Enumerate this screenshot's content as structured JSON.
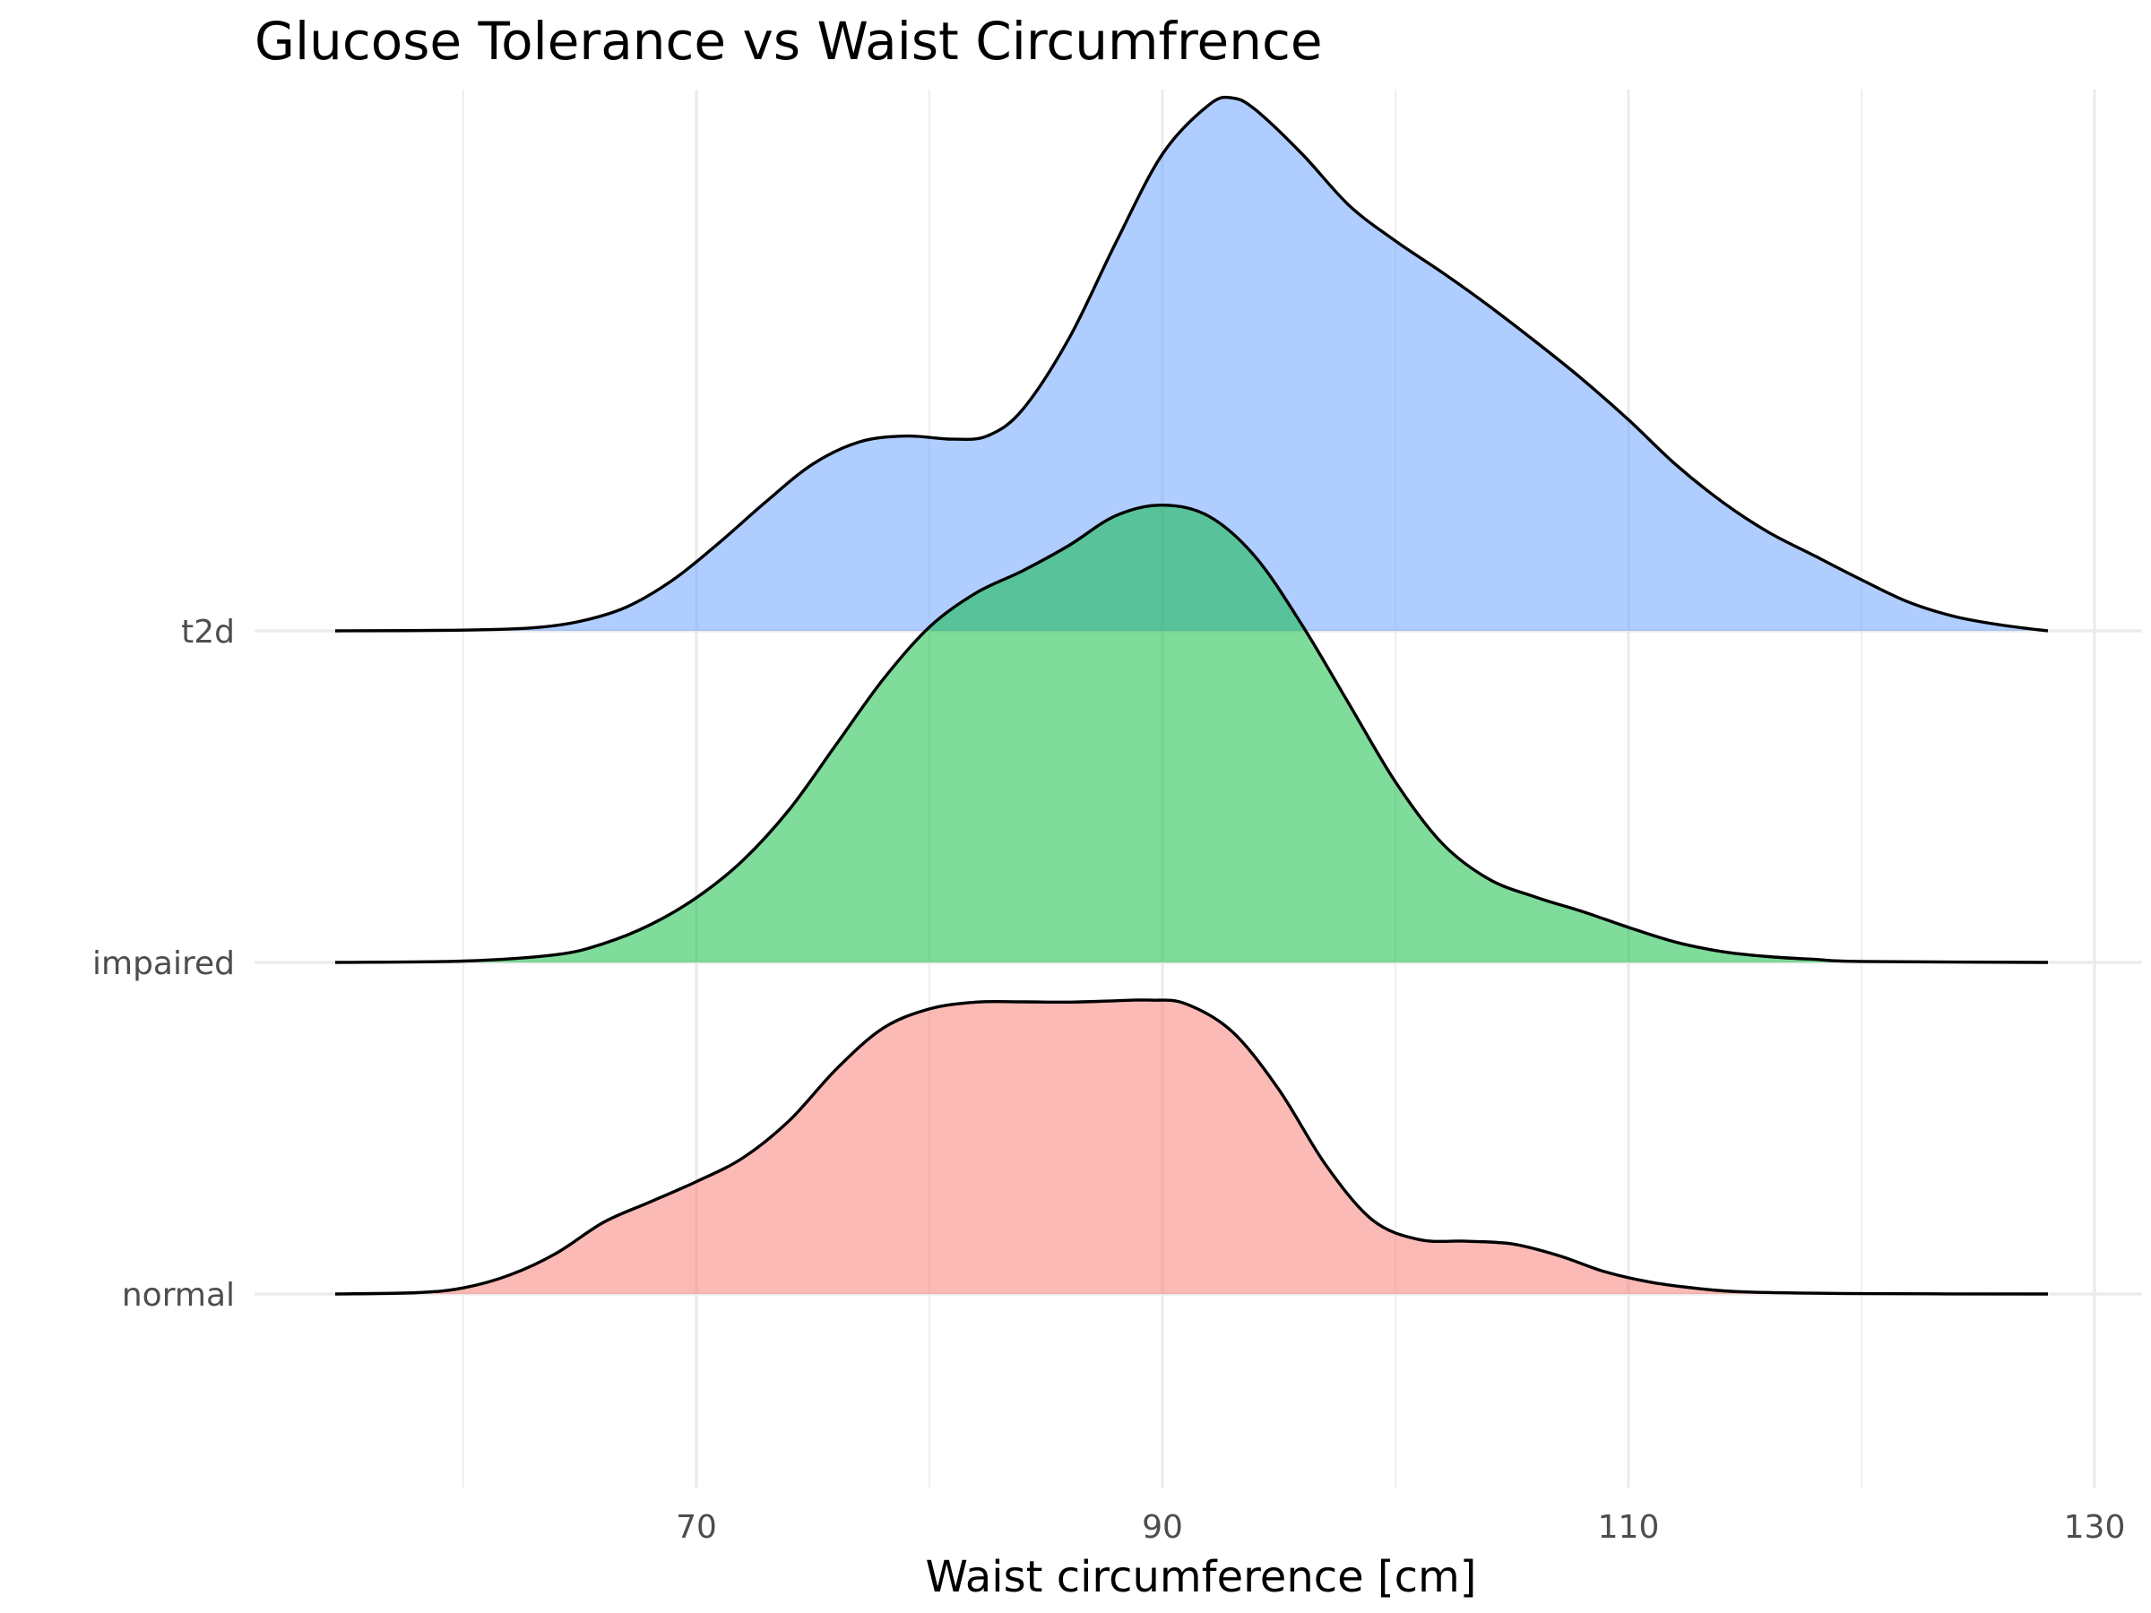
{
  "chart_data": {
    "type": "area",
    "subtype": "ridgeline-density",
    "title": "Glucose Tolerance vs Waist Circumfrence",
    "xlabel": "Waist circumference [cm]",
    "ylabel": "",
    "xlim": [
      47,
      131
    ],
    "x_ticks": [
      70,
      90,
      110,
      130
    ],
    "x_minor_ticks": [
      60,
      80,
      100,
      120
    ],
    "grid": true,
    "legend": "none",
    "categories": [
      "normal",
      "impaired",
      "t2d"
    ],
    "series": [
      {
        "name": "normal",
        "color": "#F8766D",
        "fill_alpha": 0.5,
        "points": [
          [
            54.5,
            0.0
          ],
          [
            58,
            0.004
          ],
          [
            60,
            0.018
          ],
          [
            62,
            0.056
          ],
          [
            64,
            0.12
          ],
          [
            66,
            0.21
          ],
          [
            68,
            0.27
          ],
          [
            70,
            0.33
          ],
          [
            72,
            0.4
          ],
          [
            74,
            0.51
          ],
          [
            76,
            0.66
          ],
          [
            78,
            0.78
          ],
          [
            80,
            0.837
          ],
          [
            82,
            0.857
          ],
          [
            84,
            0.858
          ],
          [
            86,
            0.857
          ],
          [
            88,
            0.861
          ],
          [
            89.5,
            0.863
          ],
          [
            91,
            0.852
          ],
          [
            93,
            0.77
          ],
          [
            95,
            0.6
          ],
          [
            97,
            0.38
          ],
          [
            99,
            0.218
          ],
          [
            101,
            0.16
          ],
          [
            103,
            0.155
          ],
          [
            105,
            0.147
          ],
          [
            107,
            0.113
          ],
          [
            109,
            0.065
          ],
          [
            111,
            0.034
          ],
          [
            113,
            0.016
          ],
          [
            115,
            0.006
          ],
          [
            120,
            0.001
          ],
          [
            128,
            0.0
          ]
        ]
      },
      {
        "name": "impaired",
        "color": "#00BA38",
        "fill_alpha": 0.5,
        "points": [
          [
            54.5,
            0.0
          ],
          [
            60,
            0.004
          ],
          [
            64,
            0.023
          ],
          [
            66,
            0.055
          ],
          [
            68,
            0.11
          ],
          [
            70,
            0.19
          ],
          [
            72,
            0.3
          ],
          [
            74,
            0.45
          ],
          [
            76,
            0.64
          ],
          [
            78,
            0.83
          ],
          [
            80,
            0.985
          ],
          [
            82,
            1.085
          ],
          [
            84,
            1.15
          ],
          [
            86,
            1.225
          ],
          [
            88,
            1.312
          ],
          [
            90,
            1.343
          ],
          [
            92,
            1.31
          ],
          [
            94,
            1.19
          ],
          [
            96,
            0.99
          ],
          [
            98,
            0.76
          ],
          [
            100,
            0.53
          ],
          [
            102,
            0.35
          ],
          [
            104,
            0.245
          ],
          [
            106,
            0.192
          ],
          [
            108,
            0.15
          ],
          [
            110,
            0.103
          ],
          [
            112,
            0.06
          ],
          [
            114,
            0.032
          ],
          [
            116,
            0.017
          ],
          [
            118,
            0.009
          ],
          [
            120,
            0.003
          ],
          [
            128,
            0.0
          ]
        ]
      },
      {
        "name": "t2d",
        "color": "#619CFF",
        "fill_alpha": 0.5,
        "points": [
          [
            54.5,
            0.0
          ],
          [
            60,
            0.002
          ],
          [
            63,
            0.009
          ],
          [
            65,
            0.028
          ],
          [
            67,
            0.07
          ],
          [
            69,
            0.15
          ],
          [
            71,
            0.26
          ],
          [
            73,
            0.38
          ],
          [
            75,
            0.49
          ],
          [
            77,
            0.555
          ],
          [
            79,
            0.572
          ],
          [
            81,
            0.563
          ],
          [
            82.5,
            0.573
          ],
          [
            84,
            0.65
          ],
          [
            86,
            0.86
          ],
          [
            88,
            1.14
          ],
          [
            90,
            1.4
          ],
          [
            92,
            1.545
          ],
          [
            93,
            1.565
          ],
          [
            94,
            1.53
          ],
          [
            96,
            1.4
          ],
          [
            98,
            1.25
          ],
          [
            100,
            1.145
          ],
          [
            102,
            1.053
          ],
          [
            104,
            0.955
          ],
          [
            106,
            0.85
          ],
          [
            108,
            0.74
          ],
          [
            110,
            0.62
          ],
          [
            112,
            0.49
          ],
          [
            114,
            0.38
          ],
          [
            116,
            0.29
          ],
          [
            118,
            0.22
          ],
          [
            120,
            0.15
          ],
          [
            122,
            0.085
          ],
          [
            124,
            0.042
          ],
          [
            126,
            0.017
          ],
          [
            128,
            0.0
          ]
        ]
      }
    ]
  }
}
